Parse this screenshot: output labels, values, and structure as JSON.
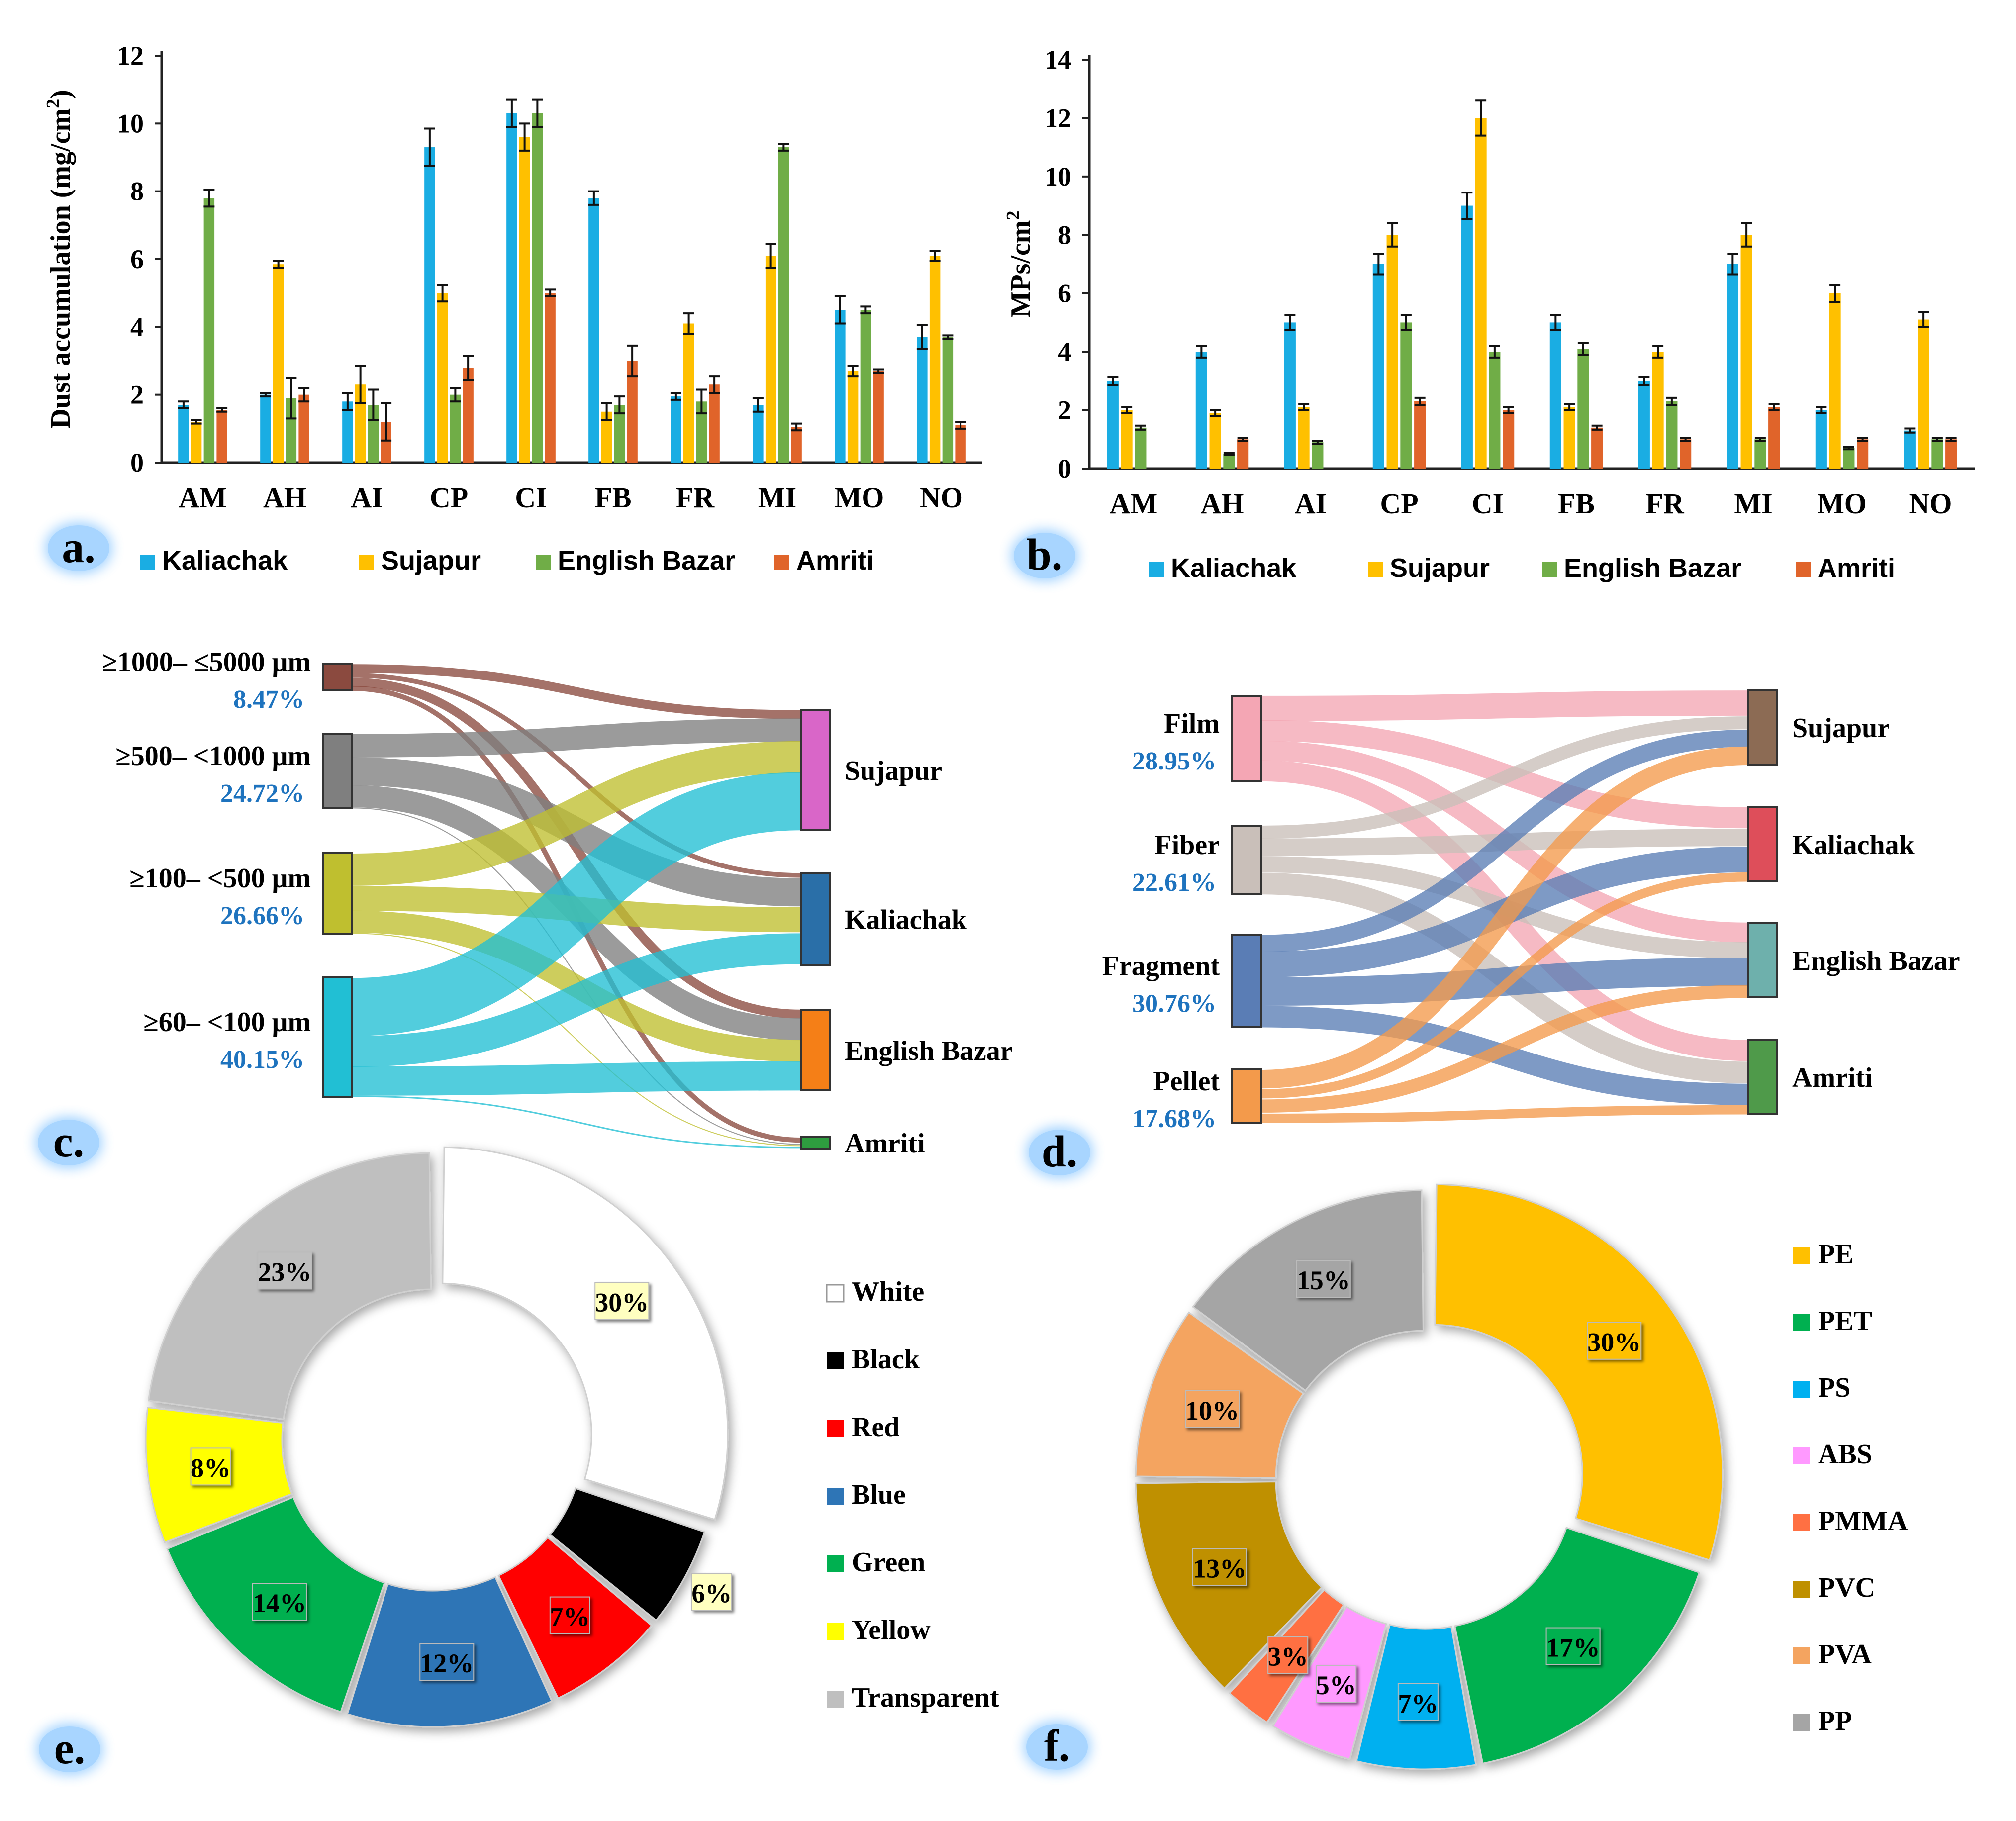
{
  "panel_labels": [
    "a.",
    "b.",
    "c.",
    "d.",
    "e.",
    "f."
  ],
  "colors": {
    "Kaliachak": "#1AADE3",
    "Sujapur": "#FFC000",
    "English Bazar": "#70AD47",
    "Amriti": "#E0642A"
  },
  "chart_data": [
    {
      "id": "a",
      "type": "bar",
      "title": "",
      "xlabel": "",
      "ylabel": "Dust accumulation (mg/cm²)",
      "ylim": [
        0,
        12
      ],
      "yticks": [
        0,
        2,
        4,
        6,
        8,
        10,
        12
      ],
      "categories": [
        "AM",
        "AH",
        "AI",
        "CP",
        "CI",
        "FB",
        "FR",
        "MI",
        "MO",
        "NO"
      ],
      "legend_position": "bottom",
      "series": [
        {
          "name": "Kaliachak",
          "values": [
            1.7,
            2.0,
            1.8,
            9.3,
            10.3,
            7.8,
            1.95,
            1.7,
            4.5,
            3.7
          ],
          "errors": [
            0.1,
            0.05,
            0.25,
            0.55,
            0.4,
            0.2,
            0.1,
            0.2,
            0.4,
            0.35
          ]
        },
        {
          "name": "Sujapur",
          "values": [
            1.2,
            5.85,
            2.3,
            5.0,
            9.6,
            1.5,
            4.1,
            6.1,
            2.7,
            6.1
          ],
          "errors": [
            0.05,
            0.1,
            0.55,
            0.25,
            0.4,
            0.25,
            0.3,
            0.35,
            0.15,
            0.15
          ]
        },
        {
          "name": "English Bazar",
          "values": [
            7.8,
            1.9,
            1.7,
            2.0,
            10.3,
            1.7,
            1.8,
            9.3,
            4.5,
            3.7
          ],
          "errors": [
            0.25,
            0.6,
            0.45,
            0.2,
            0.4,
            0.25,
            0.35,
            0.1,
            0.1,
            0.05
          ]
        },
        {
          "name": "Amriti",
          "values": [
            1.55,
            2.0,
            1.2,
            2.8,
            5.0,
            3.0,
            2.3,
            1.05,
            2.7,
            1.1
          ],
          "errors": [
            0.05,
            0.2,
            0.55,
            0.35,
            0.1,
            0.45,
            0.25,
            0.1,
            0.05,
            0.1
          ]
        }
      ]
    },
    {
      "id": "b",
      "type": "bar",
      "title": "",
      "xlabel": "",
      "ylabel": "MPs/cm²",
      "ylim": [
        0,
        14
      ],
      "yticks": [
        0,
        2,
        4,
        6,
        8,
        10,
        12,
        14
      ],
      "categories": [
        "AM",
        "AH",
        "AI",
        "CP",
        "CI",
        "FB",
        "FR",
        "MI",
        "MO",
        "NO"
      ],
      "legend_position": "bottom",
      "series": [
        {
          "name": "Kaliachak",
          "values": [
            3.0,
            4.0,
            5.0,
            7.0,
            9.0,
            5.0,
            3.0,
            7.0,
            2.0,
            1.3
          ],
          "errors": [
            0.15,
            0.2,
            0.25,
            0.35,
            0.45,
            0.25,
            0.15,
            0.35,
            0.1,
            0.07
          ]
        },
        {
          "name": "Sujapur",
          "values": [
            2.0,
            1.9,
            2.1,
            8.0,
            12.0,
            2.1,
            4.0,
            8.0,
            6.0,
            5.1
          ],
          "errors": [
            0.1,
            0.1,
            0.1,
            0.4,
            0.6,
            0.1,
            0.2,
            0.4,
            0.3,
            0.25
          ]
        },
        {
          "name": "English Bazar",
          "values": [
            1.4,
            0.5,
            0.9,
            5.0,
            4.0,
            4.1,
            2.3,
            1.0,
            0.7,
            1.0
          ],
          "errors": [
            0.07,
            0.03,
            0.05,
            0.25,
            0.2,
            0.2,
            0.12,
            0.05,
            0.04,
            0.05
          ]
        },
        {
          "name": "Amriti",
          "values": [
            0,
            1.0,
            0,
            2.3,
            2.0,
            1.4,
            1.0,
            2.1,
            1.0,
            1.0
          ],
          "errors": [
            0,
            0.05,
            0,
            0.12,
            0.1,
            0.07,
            0.05,
            0.1,
            0.05,
            0.05
          ]
        }
      ]
    },
    {
      "id": "c",
      "type": "sankey",
      "sources": [
        {
          "name": "≥1000– ≤5000 μm",
          "pct": "8.47%",
          "color": "#8B4A3F"
        },
        {
          "name": "≥500– <1000 μm",
          "pct": "24.72%",
          "color": "#7F7F7F"
        },
        {
          "name": "≥100– <500 μm",
          "pct": "26.66%",
          "color": "#BFBF2F"
        },
        {
          "name": "≥60– <100 μm",
          "pct": "40.15%",
          "color": "#21BFD4"
        }
      ],
      "targets": [
        {
          "name": "Sujapur",
          "color": "#D966C8"
        },
        {
          "name": "Kaliachak",
          "color": "#2A6FA8"
        },
        {
          "name": "English Bazar",
          "color": "#F57F17"
        },
        {
          "name": "Amriti",
          "color": "#2E9E3F"
        }
      ],
      "links": [
        {
          "source": 0,
          "target": 0,
          "value": 3
        },
        {
          "source": 0,
          "target": 1,
          "value": 1.5
        },
        {
          "source": 0,
          "target": 2,
          "value": 3
        },
        {
          "source": 0,
          "target": 3,
          "value": 1
        },
        {
          "source": 1,
          "target": 0,
          "value": 8
        },
        {
          "source": 1,
          "target": 1,
          "value": 9
        },
        {
          "source": 1,
          "target": 2,
          "value": 7.5
        },
        {
          "source": 1,
          "target": 3,
          "value": 0.2
        },
        {
          "source": 2,
          "target": 0,
          "value": 11
        },
        {
          "source": 2,
          "target": 1,
          "value": 8
        },
        {
          "source": 2,
          "target": 2,
          "value": 7.5
        },
        {
          "source": 2,
          "target": 3,
          "value": 0.2
        },
        {
          "source": 3,
          "target": 0,
          "value": 20
        },
        {
          "source": 3,
          "target": 1,
          "value": 10
        },
        {
          "source": 3,
          "target": 2,
          "value": 10
        },
        {
          "source": 3,
          "target": 3,
          "value": 0.3
        }
      ]
    },
    {
      "id": "d",
      "type": "sankey",
      "sources": [
        {
          "name": "Film",
          "pct": "28.95%",
          "color": "#F4A6B4"
        },
        {
          "name": "Fiber",
          "pct": "22.61%",
          "color": "#C9BFB9"
        },
        {
          "name": "Fragment",
          "pct": "30.76%",
          "color": "#5A7DB5"
        },
        {
          "name": "Pellet",
          "pct": "17.68%",
          "color": "#F39A4B"
        }
      ],
      "targets": [
        {
          "name": "Sujapur",
          "color": "#8C6B54"
        },
        {
          "name": "Kaliachak",
          "color": "#DE4E5A"
        },
        {
          "name": "English Bazar",
          "color": "#6EB0AC"
        },
        {
          "name": "Amriti",
          "color": "#4F9A4A"
        }
      ],
      "links": [
        {
          "source": 0,
          "target": 0,
          "value": 6
        },
        {
          "source": 0,
          "target": 1,
          "value": 5
        },
        {
          "source": 0,
          "target": 2,
          "value": 5
        },
        {
          "source": 0,
          "target": 3,
          "value": 5
        },
        {
          "source": 1,
          "target": 0,
          "value": 3
        },
        {
          "source": 1,
          "target": 1,
          "value": 4
        },
        {
          "source": 1,
          "target": 2,
          "value": 4
        },
        {
          "source": 1,
          "target": 3,
          "value": 5
        },
        {
          "source": 2,
          "target": 0,
          "value": 4
        },
        {
          "source": 2,
          "target": 1,
          "value": 6
        },
        {
          "source": 2,
          "target": 2,
          "value": 7
        },
        {
          "source": 2,
          "target": 3,
          "value": 5
        },
        {
          "source": 3,
          "target": 0,
          "value": 4
        },
        {
          "source": 3,
          "target": 1,
          "value": 2
        },
        {
          "source": 3,
          "target": 2,
          "value": 3
        },
        {
          "source": 3,
          "target": 3,
          "value": 2
        }
      ]
    },
    {
      "id": "e",
      "type": "pie",
      "donut": true,
      "legend_position": "right",
      "slices": [
        {
          "label": "White",
          "value": 30,
          "text": "30%",
          "color": "#FFFFFF"
        },
        {
          "label": "Black",
          "value": 6,
          "text": "6%",
          "color": "#000000"
        },
        {
          "label": "Red",
          "value": 7,
          "text": "7%",
          "color": "#FF0000"
        },
        {
          "label": "Blue",
          "value": 12,
          "text": "12%",
          "color": "#2E75B6"
        },
        {
          "label": "Green",
          "value": 14,
          "text": "14%",
          "color": "#00B050"
        },
        {
          "label": "Yellow",
          "value": 8,
          "text": "8%",
          "color": "#FFFF00"
        },
        {
          "label": "Transparent",
          "value": 23,
          "text": "23%",
          "color": "#BFBFBF"
        }
      ]
    },
    {
      "id": "f",
      "type": "pie",
      "donut": true,
      "legend_position": "right",
      "slices": [
        {
          "label": "PE",
          "value": 30,
          "text": "30%",
          "color": "#FFC000"
        },
        {
          "label": "PET",
          "value": 17,
          "text": "17%",
          "color": "#00B050"
        },
        {
          "label": "PS",
          "value": 7,
          "text": "7%",
          "color": "#00B0F0"
        },
        {
          "label": "ABS",
          "value": 5,
          "text": "5%",
          "color": "#FF99FF"
        },
        {
          "label": "PMMA",
          "value": 3,
          "text": "3%",
          "color": "#FF7043"
        },
        {
          "label": "PVC",
          "value": 13,
          "text": "13%",
          "color": "#BF9000"
        },
        {
          "label": "PVA",
          "value": 10,
          "text": "10%",
          "color": "#F4A460"
        },
        {
          "label": "PP",
          "value": 15,
          "text": "15%",
          "color": "#A5A5A5"
        }
      ]
    }
  ]
}
